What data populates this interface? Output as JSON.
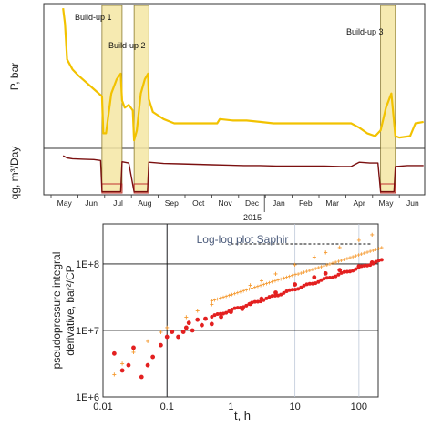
{
  "chart_data": [
    {
      "type": "line",
      "panel": "history",
      "ylabel_top": "P, bar",
      "ylabel_bottom": "qg, m³/Day",
      "x_tick_labels": [
        "May",
        "Jun",
        "Jul",
        "Aug",
        "Sep",
        "Oct",
        "Nov",
        "Dec",
        "Jan",
        "Feb",
        "Mar",
        "Apr",
        "May",
        "Jun"
      ],
      "year_label": "2015",
      "colors": {
        "pressure": "#f2c200",
        "rate": "#7b1010",
        "highlight_fill": "#f5e6a3",
        "highlight_stroke": "#8a7a30"
      },
      "buildups": [
        {
          "label": "Build-up 1",
          "start_month": 1.9,
          "end_month": 2.65
        },
        {
          "label": "Build-up 2",
          "start_month": 3.1,
          "end_month": 3.65
        },
        {
          "label": "Build-up 3",
          "start_month": 12.3,
          "end_month": 12.85
        }
      ],
      "series": [
        {
          "key": "pressure",
          "points": [
            [
              0.45,
              0.02
            ],
            [
              0.52,
              0.13
            ],
            [
              0.6,
              0.38
            ],
            [
              0.8,
              0.45
            ],
            [
              1.0,
              0.49
            ],
            [
              1.3,
              0.54
            ],
            [
              1.6,
              0.59
            ],
            [
              1.9,
              0.64
            ],
            [
              1.95,
              0.9
            ],
            [
              2.05,
              0.9
            ],
            [
              2.25,
              0.62
            ],
            [
              2.45,
              0.52
            ],
            [
              2.6,
              0.48
            ],
            [
              2.65,
              0.67
            ],
            [
              2.75,
              0.72
            ],
            [
              2.9,
              0.7
            ],
            [
              3.05,
              0.74
            ],
            [
              3.1,
              0.95
            ],
            [
              3.2,
              0.88
            ],
            [
              3.35,
              0.62
            ],
            [
              3.5,
              0.52
            ],
            [
              3.62,
              0.48
            ],
            [
              3.65,
              0.66
            ],
            [
              3.8,
              0.75
            ],
            [
              4.2,
              0.8
            ],
            [
              4.6,
              0.83
            ],
            [
              5.0,
              0.83
            ],
            [
              5.4,
              0.83
            ],
            [
              5.9,
              0.83
            ],
            [
              6.2,
              0.83
            ],
            [
              6.3,
              0.8
            ],
            [
              6.8,
              0.81
            ],
            [
              7.3,
              0.81
            ],
            [
              7.8,
              0.82
            ],
            [
              8.3,
              0.83
            ],
            [
              8.8,
              0.83
            ],
            [
              9.3,
              0.83
            ],
            [
              9.8,
              0.83
            ],
            [
              10.3,
              0.83
            ],
            [
              10.8,
              0.83
            ],
            [
              11.2,
              0.83
            ],
            [
              11.5,
              0.86
            ],
            [
              11.8,
              0.9
            ],
            [
              12.1,
              0.92
            ],
            [
              12.3,
              0.88
            ],
            [
              12.5,
              0.72
            ],
            [
              12.7,
              0.62
            ],
            [
              12.85,
              0.92
            ],
            [
              13.0,
              0.93
            ],
            [
              13.4,
              0.92
            ],
            [
              13.6,
              0.83
            ],
            [
              13.9,
              0.82
            ]
          ]
        },
        {
          "key": "rate",
          "points": [
            [
              0.45,
              0.13
            ],
            [
              0.6,
              0.18
            ],
            [
              0.8,
              0.2
            ],
            [
              1.2,
              0.21
            ],
            [
              1.6,
              0.22
            ],
            [
              1.85,
              0.24
            ],
            [
              1.9,
              0.97
            ],
            [
              2.6,
              0.97
            ],
            [
              2.65,
              0.27
            ],
            [
              2.9,
              0.3
            ],
            [
              3.1,
              0.97
            ],
            [
              3.6,
              0.97
            ],
            [
              3.65,
              0.28
            ],
            [
              4.2,
              0.31
            ],
            [
              4.8,
              0.32
            ],
            [
              5.4,
              0.33
            ],
            [
              6.0,
              0.34
            ],
            [
              6.6,
              0.35
            ],
            [
              7.2,
              0.36
            ],
            [
              7.8,
              0.36
            ],
            [
              8.4,
              0.37
            ],
            [
              9.0,
              0.37
            ],
            [
              9.6,
              0.37
            ],
            [
              10.2,
              0.37
            ],
            [
              10.8,
              0.38
            ],
            [
              11.2,
              0.38
            ],
            [
              11.5,
              0.28
            ],
            [
              11.9,
              0.3
            ],
            [
              12.2,
              0.3
            ],
            [
              12.3,
              0.97
            ],
            [
              12.8,
              0.97
            ],
            [
              12.85,
              0.38
            ],
            [
              13.3,
              0.36
            ],
            [
              13.9,
              0.36
            ]
          ]
        }
      ]
    },
    {
      "type": "scatter",
      "panel": "loglog",
      "title": "Log-log plot Saphir",
      "xlabel": "t, h",
      "ylabel_line1": "pseudopressure integral",
      "ylabel_line2": "derivative, bar²/CP",
      "x_scale": "log",
      "y_scale": "log",
      "xlim": [
        0.01,
        200
      ],
      "ylim": [
        1000000.0,
        400000000.0
      ],
      "x_tick_labels": [
        "0.01",
        "0.1",
        "1",
        "10",
        "100"
      ],
      "y_tick_labels": [
        "1E+6",
        "1E+7",
        "1E+8"
      ],
      "grid": true,
      "series": [
        {
          "key": "pressure_change",
          "color": "#f59a30",
          "x": [
            0.015,
            0.02,
            0.03,
            0.05,
            0.08,
            0.1,
            0.2,
            0.3,
            0.5,
            1,
            2,
            3,
            5,
            10,
            20,
            30,
            50,
            100,
            160
          ],
          "y": [
            2200000.0,
            3200000.0,
            4800000.0,
            7000000.0,
            9500000.0,
            11200000.0,
            16000000.0,
            20000000.0,
            25000000.0,
            35000000.0,
            48000000.0,
            57000000.0,
            72000000.0,
            98000000.0,
            128000000.0,
            150000000.0,
            180000000.0,
            230000000.0,
            280000000.0
          ]
        },
        {
          "key": "derivative",
          "color": "#e32020",
          "x": [
            0.015,
            0.02,
            0.025,
            0.03,
            0.04,
            0.05,
            0.06,
            0.08,
            0.1,
            0.12,
            0.15,
            0.18,
            0.2,
            0.22,
            0.25,
            0.3,
            0.35,
            0.4,
            0.5,
            0.7,
            1,
            1.5,
            2,
            3,
            5,
            10,
            20,
            30,
            50,
            100,
            160
          ],
          "y": [
            4500000.0,
            2500000.0,
            3000000.0,
            5500000.0,
            2000000.0,
            3000000.0,
            4000000.0,
            6000000.0,
            8000000.0,
            9500000.0,
            8000000.0,
            9500000.0,
            11000000.0,
            13000000.0,
            10000000.0,
            14500000.0,
            12000000.0,
            15000000.0,
            12500000.0,
            16000000.0,
            19000000.0,
            21000000.0,
            25000000.0,
            30000000.0,
            37000000.0,
            49000000.0,
            63000000.0,
            72000000.0,
            81000000.0,
            92000000.0,
            105000000.0
          ]
        }
      ],
      "reference_line": {
        "x_start": 1,
        "x_end": 160,
        "y": 200000000.0,
        "style": "dashed"
      }
    }
  ]
}
